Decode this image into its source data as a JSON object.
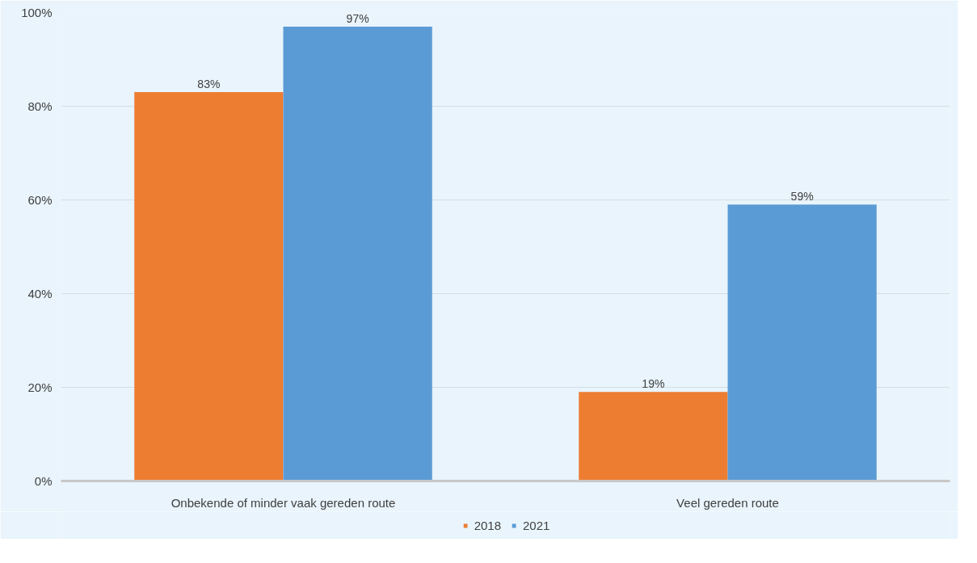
{
  "chart_data": {
    "type": "bar",
    "categories": [
      "Onbekende of minder vaak gereden route",
      "Veel gereden route"
    ],
    "series": [
      {
        "name": "2018",
        "color": "#ed7d31",
        "values": [
          83,
          19
        ],
        "value_labels": [
          "83%",
          "19%"
        ]
      },
      {
        "name": "2021",
        "color": "#5b9bd5",
        "values": [
          97,
          59
        ],
        "value_labels": [
          "97%",
          "59%"
        ]
      }
    ],
    "ylim": [
      0,
      100
    ],
    "yticks": [
      {
        "value": 0,
        "label": "0%"
      },
      {
        "value": 20,
        "label": "20%"
      },
      {
        "value": 40,
        "label": "40%"
      },
      {
        "value": 60,
        "label": "60%"
      },
      {
        "value": 80,
        "label": "80%"
      },
      {
        "value": 100,
        "label": "100%"
      }
    ],
    "grid": "y",
    "legend": "bottom"
  }
}
